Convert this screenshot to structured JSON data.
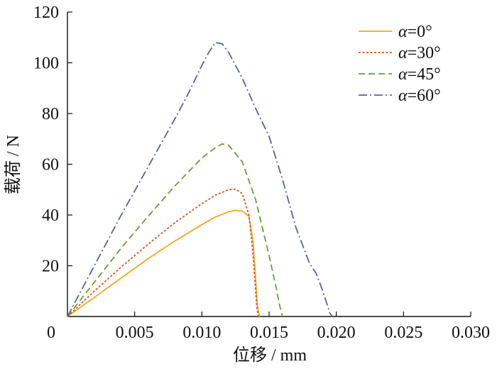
{
  "chart_data": {
    "type": "line",
    "xlabel": "位移 / mm",
    "ylabel": "载荷 / N",
    "xlim": [
      0,
      0.03
    ],
    "ylim": [
      0,
      120
    ],
    "x_ticks": [
      "0",
      "0.005",
      "0.010",
      "0.015",
      "0.020",
      "0.025",
      "0.030"
    ],
    "y_ticks": [
      "20",
      "40",
      "60",
      "80",
      "100",
      "120"
    ],
    "grid": false,
    "legend_position": "top-right",
    "series": [
      {
        "name": "α=0°",
        "legend_symbol": "α",
        "legend_value": "=0°",
        "color": "#f5a623",
        "dash": "solid",
        "x": [
          0,
          0.002,
          0.004,
          0.006,
          0.008,
          0.01,
          0.011,
          0.012,
          0.0125,
          0.013,
          0.0135,
          0.0138,
          0.014,
          0.0141,
          0.0142,
          0.0143
        ],
        "y": [
          0,
          7.5,
          15.2,
          22.8,
          29.8,
          36.2,
          39.2,
          41.3,
          41.8,
          41.6,
          39.5,
          30.0,
          15.0,
          6.0,
          2.0,
          0
        ]
      },
      {
        "name": "α=30°",
        "legend_symbol": "α",
        "legend_value": "=30°",
        "color": "#d9531e",
        "dash": "3,2.5",
        "x": [
          0,
          0.002,
          0.004,
          0.006,
          0.008,
          0.01,
          0.011,
          0.012,
          0.0125,
          0.013,
          0.0135,
          0.0138,
          0.014,
          0.0141,
          0.0142
        ],
        "y": [
          0,
          10.0,
          19.5,
          28.5,
          37.0,
          44.5,
          47.8,
          50.0,
          50.2,
          48.5,
          40.0,
          25.0,
          10.0,
          3.0,
          0
        ]
      },
      {
        "name": "α=45°",
        "legend_symbol": "α",
        "legend_value": "=45°",
        "color": "#6f9a3a",
        "dash": "9,5",
        "x": [
          0,
          0.002,
          0.004,
          0.006,
          0.008,
          0.01,
          0.011,
          0.0115,
          0.012,
          0.013,
          0.014,
          0.015,
          0.0155,
          0.0158,
          0.016
        ],
        "y": [
          0,
          13.5,
          27.0,
          39.5,
          51.5,
          62.5,
          66.5,
          68.0,
          67.5,
          61.0,
          46.0,
          24.0,
          12.0,
          4.0,
          0
        ]
      },
      {
        "name": "α=60°",
        "legend_symbol": "α",
        "legend_value": "=60°",
        "color": "#5a5fa8",
        "dash": "12,4,2,4",
        "x": [
          0,
          0.002,
          0.004,
          0.006,
          0.008,
          0.009,
          0.01,
          0.0105,
          0.011,
          0.0115,
          0.012,
          0.013,
          0.014,
          0.015,
          0.016,
          0.017,
          0.018,
          0.0185,
          0.019,
          0.0193,
          0.0195,
          0.0197
        ],
        "y": [
          0,
          20.0,
          40.0,
          59.0,
          78.0,
          88.0,
          99.0,
          104.0,
          108.0,
          107.5,
          104.0,
          94.0,
          82.0,
          71.0,
          54.0,
          35.0,
          21.0,
          17.0,
          10.0,
          5.0,
          1.5,
          0
        ]
      }
    ]
  }
}
